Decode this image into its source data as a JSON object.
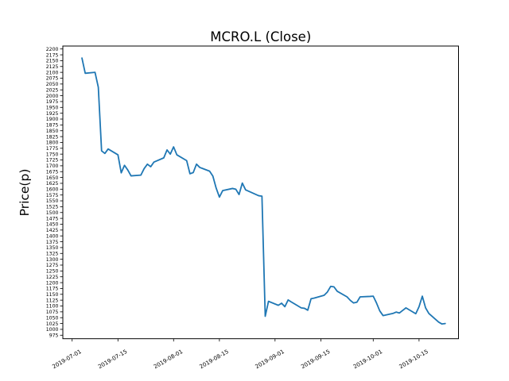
{
  "figure": {
    "background": "#ffffff"
  },
  "chart_data": {
    "type": "line",
    "title": "MCRO.L (Close)",
    "xlabel": "",
    "ylabel": "Price(p)",
    "legend": null,
    "grid": false,
    "line_color": "#1f77b4",
    "axis_color": "#000000",
    "y_axis": {
      "min": 975,
      "max": 2200,
      "tick_step": 25
    },
    "x_ticks": [
      {
        "label": "2019-07-01",
        "date": "2019-07-01"
      },
      {
        "label": "2019-07-15",
        "date": "2019-07-15"
      },
      {
        "label": "2019-08-01",
        "date": "2019-08-01"
      },
      {
        "label": "2019-08-15",
        "date": "2019-08-15"
      },
      {
        "label": "2019-09-01",
        "date": "2019-09-01"
      },
      {
        "label": "2019-09-15",
        "date": "2019-09-15"
      },
      {
        "label": "2019-10-01",
        "date": "2019-10-01"
      },
      {
        "label": "2019-10-15",
        "date": "2019-10-15"
      }
    ],
    "series": [
      {
        "name": "Close",
        "dates": [
          "2019-07-04",
          "2019-07-05",
          "2019-07-08",
          "2019-07-09",
          "2019-07-10",
          "2019-07-11",
          "2019-07-12",
          "2019-07-15",
          "2019-07-16",
          "2019-07-17",
          "2019-07-18",
          "2019-07-19",
          "2019-07-22",
          "2019-07-23",
          "2019-07-24",
          "2019-07-25",
          "2019-07-26",
          "2019-07-29",
          "2019-07-30",
          "2019-07-31",
          "2019-08-01",
          "2019-08-02",
          "2019-08-05",
          "2019-08-06",
          "2019-08-07",
          "2019-08-08",
          "2019-08-09",
          "2019-08-12",
          "2019-08-13",
          "2019-08-14",
          "2019-08-15",
          "2019-08-16",
          "2019-08-19",
          "2019-08-20",
          "2019-08-21",
          "2019-08-22",
          "2019-08-23",
          "2019-08-27",
          "2019-08-28",
          "2019-08-29",
          "2019-08-30",
          "2019-09-02",
          "2019-09-03",
          "2019-09-04",
          "2019-09-05",
          "2019-09-06",
          "2019-09-09",
          "2019-09-10",
          "2019-09-11",
          "2019-09-12",
          "2019-09-13",
          "2019-09-16",
          "2019-09-17",
          "2019-09-18",
          "2019-09-19",
          "2019-09-20",
          "2019-09-23",
          "2019-09-24",
          "2019-09-25",
          "2019-09-26",
          "2019-09-27",
          "2019-09-30",
          "2019-10-01",
          "2019-10-02",
          "2019-10-03",
          "2019-10-04",
          "2019-10-07",
          "2019-10-08",
          "2019-10-09",
          "2019-10-10",
          "2019-10-11",
          "2019-10-14",
          "2019-10-15",
          "2019-10-16",
          "2019-10-17",
          "2019-10-18",
          "2019-10-21",
          "2019-10-22",
          "2019-10-23"
        ],
        "values": [
          2161,
          2096,
          2100,
          2036,
          1764,
          1753,
          1772,
          1747,
          1670,
          1702,
          1682,
          1657,
          1660,
          1688,
          1707,
          1696,
          1716,
          1734,
          1768,
          1750,
          1781,
          1747,
          1722,
          1666,
          1671,
          1707,
          1693,
          1677,
          1656,
          1605,
          1566,
          1594,
          1603,
          1600,
          1577,
          1626,
          1597,
          1572,
          1570,
          1056,
          1120,
          1103,
          1112,
          1097,
          1126,
          1117,
          1092,
          1090,
          1082,
          1131,
          1134,
          1146,
          1160,
          1184,
          1182,
          1163,
          1139,
          1124,
          1113,
          1116,
          1139,
          1141,
          1142,
          1113,
          1079,
          1059,
          1068,
          1074,
          1070,
          1081,
          1092,
          1067,
          1097,
          1142,
          1092,
          1068,
          1031,
          1023,
          1025
        ]
      }
    ]
  }
}
